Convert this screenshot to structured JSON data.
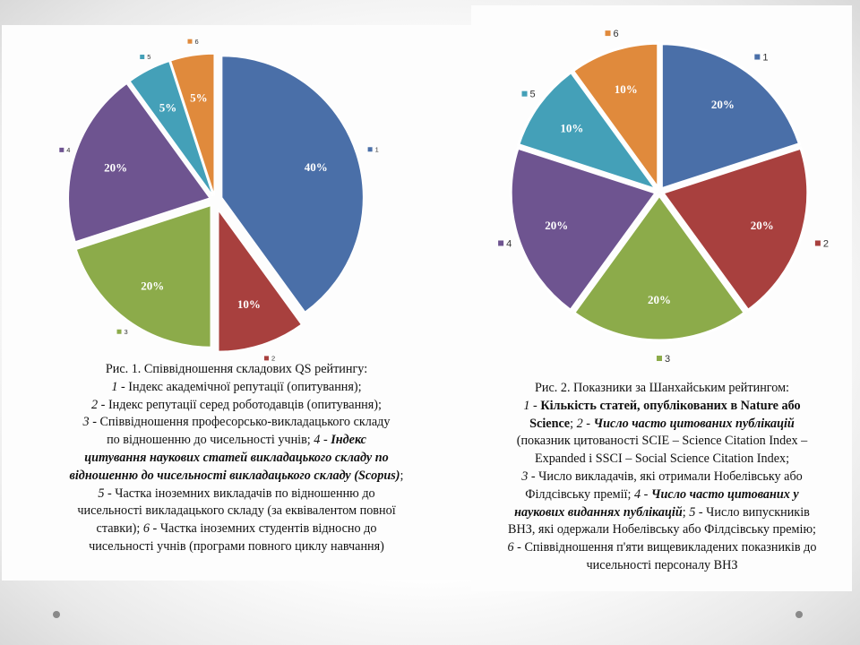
{
  "chart_data": [
    {
      "type": "pie",
      "categories": [
        "1",
        "2",
        "3",
        "4",
        "5",
        "6"
      ],
      "values": [
        40,
        10,
        20,
        20,
        5,
        5
      ],
      "labels": [
        "40%",
        "10%",
        "20%",
        "20%",
        "5%",
        "5%"
      ],
      "colors": [
        "#4a6fa8",
        "#a8403e",
        "#8cab4a",
        "#6e5490",
        "#44a0b8",
        "#e08a3c"
      ],
      "legend": "per-slice"
    },
    {
      "type": "pie",
      "categories": [
        "1",
        "2",
        "3",
        "4",
        "5",
        "6"
      ],
      "values": [
        20,
        20,
        20,
        20,
        10,
        10
      ],
      "labels": [
        "20%",
        "20%",
        "20%",
        "20%",
        "10%",
        "10%"
      ],
      "colors": [
        "#4a6fa8",
        "#a8403e",
        "#8cab4a",
        "#6e5490",
        "#44a0b8",
        "#e08a3c"
      ],
      "legend": "per-slice"
    }
  ],
  "caption_left": {
    "l1": "Рис. 1. Співвідношення складових QS рейтингу:",
    "n1": "1 -",
    "t1": " Індекс академічної репутації (опитування);",
    "n2": "2 -",
    "t2": " Індекс репутації серед роботодавців (опитування);",
    "n3": "3 -",
    "t3": " Співвідношення професорсько-викладацького складу",
    "t3b": "по відношенню до чисельності учнів; ",
    "n4": "4 - ",
    "t4a": "Індекс",
    "t4b": "цитування наукових статей викладацького складу по",
    "t4c": "відношенню до чисельності викладацького складу (Scopus)",
    "t4d": ";",
    "n5": "5 -",
    "t5a": " Частка іноземних викладачів по відношенню до",
    "t5b": "чисельності викладацького складу (за еквівалентом повної",
    "t5c": "ставки); ",
    "n6": "6 -",
    "t6a": " Частка іноземних студентів відносно до",
    "t6b": "чисельності учнів (програми повного циклу навчання)"
  },
  "caption_right": {
    "l1": "Рис. 2. Показники за Шанхайським рейтингом:",
    "n1": "1 - ",
    "t1a": "Кількість статей, опублікованих в Nature або",
    "t1b": "Science",
    "t1c": "; ",
    "n2": "2 - ",
    "t2a": "Число часто цитованих публікацій",
    "t2b": "(показник цитованості SCIE – Science Citation Index –",
    "t2c": "Expanded і SSCI – Social Science Citation Index;",
    "n3": "3 -",
    "t3a": " Число викладачів, які отримали Нобелівську або",
    "t3b": "Філдсівську премії; ",
    "n4": "4 - ",
    "t4a": "Число часто цитованих у",
    "t4b": "наукових виданнях публікацій",
    "t4c": "; ",
    "n5": "5 -",
    "t5a": " Число випускників",
    "t5b": "ВНЗ, які одержали Нобелівську або Філдсівську премію;",
    "n6": "6 -",
    "t6a": " Співвідношення п'яти вищевикладених показників до",
    "t6b": "чисельності персоналу ВНЗ"
  }
}
